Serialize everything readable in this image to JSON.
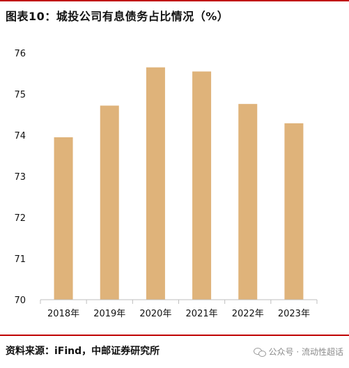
{
  "header": {
    "title": "图表10：城投公司有息债务占比情况（%）"
  },
  "footer": {
    "source": "资料来源：iFind，中邮证券研究所",
    "watermark": "公众号 · 流动性超话"
  },
  "colors": {
    "bar": "#dfb37a",
    "rule": "#c00000",
    "axis": "#bfbfbf"
  },
  "chart_data": {
    "type": "bar",
    "categories": [
      "2018年",
      "2019年",
      "2020年",
      "2021年",
      "2022年",
      "2023年"
    ],
    "values": [
      73.95,
      74.72,
      75.65,
      75.55,
      74.76,
      74.29
    ],
    "title": "城投公司有息债务占比情况（%）",
    "xlabel": "",
    "ylabel": "",
    "ylim": [
      70,
      76
    ],
    "yticks": [
      70,
      71,
      72,
      73,
      74,
      75,
      76
    ],
    "grid": false,
    "legend": "none"
  }
}
